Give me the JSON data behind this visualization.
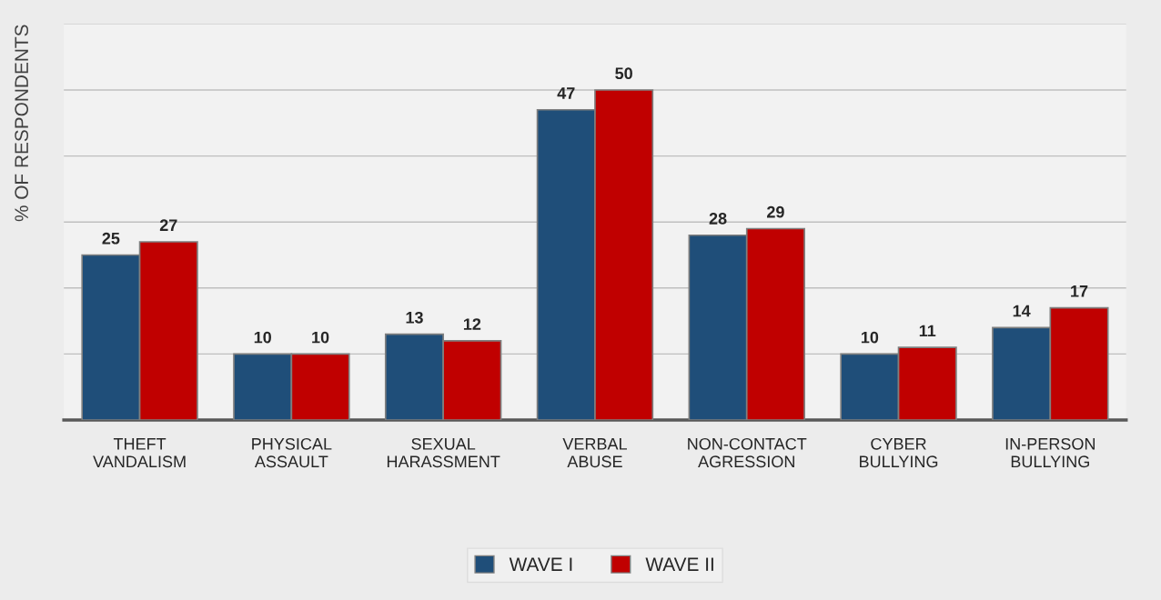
{
  "chart_data": {
    "type": "bar",
    "ylabel": "% OF RESPONDENTS",
    "categories": [
      "THEFT\nVANDALISM",
      "PHYSICAL\nASSAULT",
      "SEXUAL\nHARASSMENT",
      "VERBAL\nABUSE",
      "NON-CONTACT\nAGRESSION",
      "CYBER\nBULLYING",
      "IN-PERSON\nBULLYING"
    ],
    "series": [
      {
        "name": "WAVE I",
        "color": "#1f4e79",
        "values": [
          25,
          10,
          13,
          47,
          28,
          10,
          14
        ]
      },
      {
        "name": "WAVE II",
        "color": "#c00000",
        "values": [
          27,
          10,
          12,
          50,
          29,
          11,
          17
        ]
      }
    ],
    "ylim": [
      0,
      60
    ],
    "yticks": [
      {
        "value": 0,
        "label": null
      },
      {
        "value": 10,
        "label": null
      },
      {
        "value": 20,
        "label": null
      },
      {
        "value": 30,
        "label": null
      },
      {
        "value": 40,
        "label": null
      },
      {
        "value": 50,
        "label": null
      },
      {
        "value": 60,
        "label": null
      }
    ],
    "tick_labels": "x",
    "grid": "y",
    "legend": "bottom",
    "data_labels": true
  }
}
